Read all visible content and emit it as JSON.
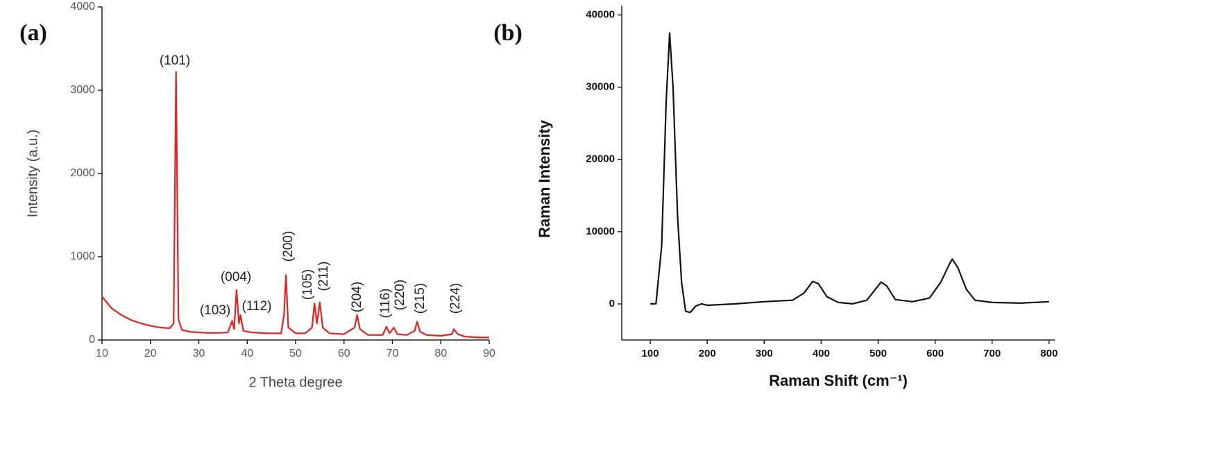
{
  "chart_data": [
    {
      "type": "line",
      "title": "(a)",
      "x_label": "2 Theta degree",
      "y_label": "Intensity (a.u.)",
      "color": "#e8201e",
      "xlim": [
        10,
        90
      ],
      "xticks": [
        10,
        20,
        30,
        40,
        50,
        60,
        70,
        80,
        90
      ],
      "ylim": [
        0,
        4000
      ],
      "yticks": [
        0,
        1000,
        2000,
        3000,
        4000
      ],
      "x": [
        10,
        11,
        12,
        14,
        16,
        18,
        20,
        22,
        24,
        24.8,
        25.3,
        25.8,
        26.5,
        28,
        30,
        32,
        34,
        36,
        36.9,
        37.3,
        37.8,
        38.3,
        38.6,
        39.2,
        41,
        44,
        47,
        47.6,
        48.0,
        48.5,
        50,
        52,
        53.4,
        53.9,
        54.4,
        55.0,
        55.6,
        57,
        60,
        62.2,
        62.7,
        63.3,
        65,
        68,
        68.8,
        69.4,
        70.3,
        71,
        73,
        74.6,
        75.1,
        75.7,
        77,
        80,
        82.3,
        82.7,
        83.5,
        85,
        88,
        90
      ],
      "values": [
        520,
        450,
        380,
        300,
        240,
        200,
        170,
        150,
        140,
        200,
        3220,
        250,
        120,
        100,
        90,
        85,
        85,
        90,
        230,
        130,
        600,
        200,
        300,
        110,
        90,
        80,
        80,
        300,
        780,
        150,
        80,
        80,
        150,
        440,
        200,
        450,
        150,
        80,
        70,
        150,
        300,
        130,
        60,
        60,
        160,
        80,
        150,
        70,
        60,
        110,
        220,
        100,
        60,
        50,
        70,
        130,
        70,
        40,
        30,
        30
      ],
      "annotations": [
        "(101)",
        "(103)",
        "(004)",
        "(112)",
        "(200)",
        "(105)",
        "(211)",
        "(204)",
        "(116)",
        "(220)",
        "(215)",
        "(224)"
      ]
    },
    {
      "type": "line",
      "title": "(b)",
      "x_label": "Raman Shift (cm⁻¹)",
      "y_label": "Raman Intensity",
      "color": "#111111",
      "xlim": [
        50,
        810
      ],
      "xticks": [
        100,
        200,
        300,
        400,
        500,
        600,
        700,
        800
      ],
      "ylim": [
        -5000,
        41300
      ],
      "yticks": [
        0,
        10000,
        20000,
        30000,
        40000
      ],
      "x": [
        100,
        110,
        120,
        128,
        134,
        140,
        148,
        155,
        162,
        170,
        180,
        190,
        200,
        250,
        300,
        350,
        370,
        385,
        395,
        410,
        430,
        455,
        480,
        495,
        505,
        515,
        530,
        560,
        590,
        610,
        625,
        630,
        640,
        655,
        670,
        700,
        750,
        800
      ],
      "values": [
        0,
        0,
        8000,
        28000,
        37500,
        30000,
        12000,
        3000,
        -1000,
        -1200,
        -300,
        0,
        -200,
        0,
        300,
        500,
        1500,
        3100,
        2800,
        1000,
        200,
        0,
        500,
        2000,
        3000,
        2500,
        600,
        300,
        800,
        3000,
        5500,
        6200,
        5000,
        2000,
        500,
        200,
        100,
        300
      ]
    }
  ]
}
